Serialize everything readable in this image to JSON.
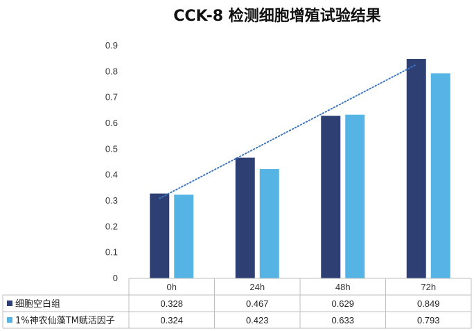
{
  "chart_data": {
    "type": "bar",
    "title": "CCK-8 检测细胞增殖试验结果",
    "xlabel": "",
    "ylabel": "",
    "categories": [
      "0h",
      "24h",
      "48h",
      "72h"
    ],
    "series": [
      {
        "name": "细胞空白组",
        "values": [
          0.328,
          0.467,
          0.629,
          0.849
        ],
        "color": "#2e3f73"
      },
      {
        "name": "1%神农仙藻TM赋活因子",
        "values": [
          0.324,
          0.423,
          0.633,
          0.793
        ],
        "color": "#56b4e4"
      }
    ],
    "value_labels": [
      [
        "0.328",
        "0.467",
        "0.629",
        "0.849"
      ],
      [
        "0.324",
        "0.423",
        "0.633",
        "0.793"
      ]
    ],
    "ylim": [
      0,
      0.9
    ],
    "yticks": [
      "0",
      "0.1",
      "0.2",
      "0.3",
      "0.4",
      "0.5",
      "0.6",
      "0.7",
      "0.8",
      "0.9"
    ],
    "grid": false,
    "legend": "data-table-below",
    "trendline": {
      "series": "细胞空白组",
      "type": "linear",
      "style": "dotted",
      "color": "#3a78c8"
    }
  }
}
